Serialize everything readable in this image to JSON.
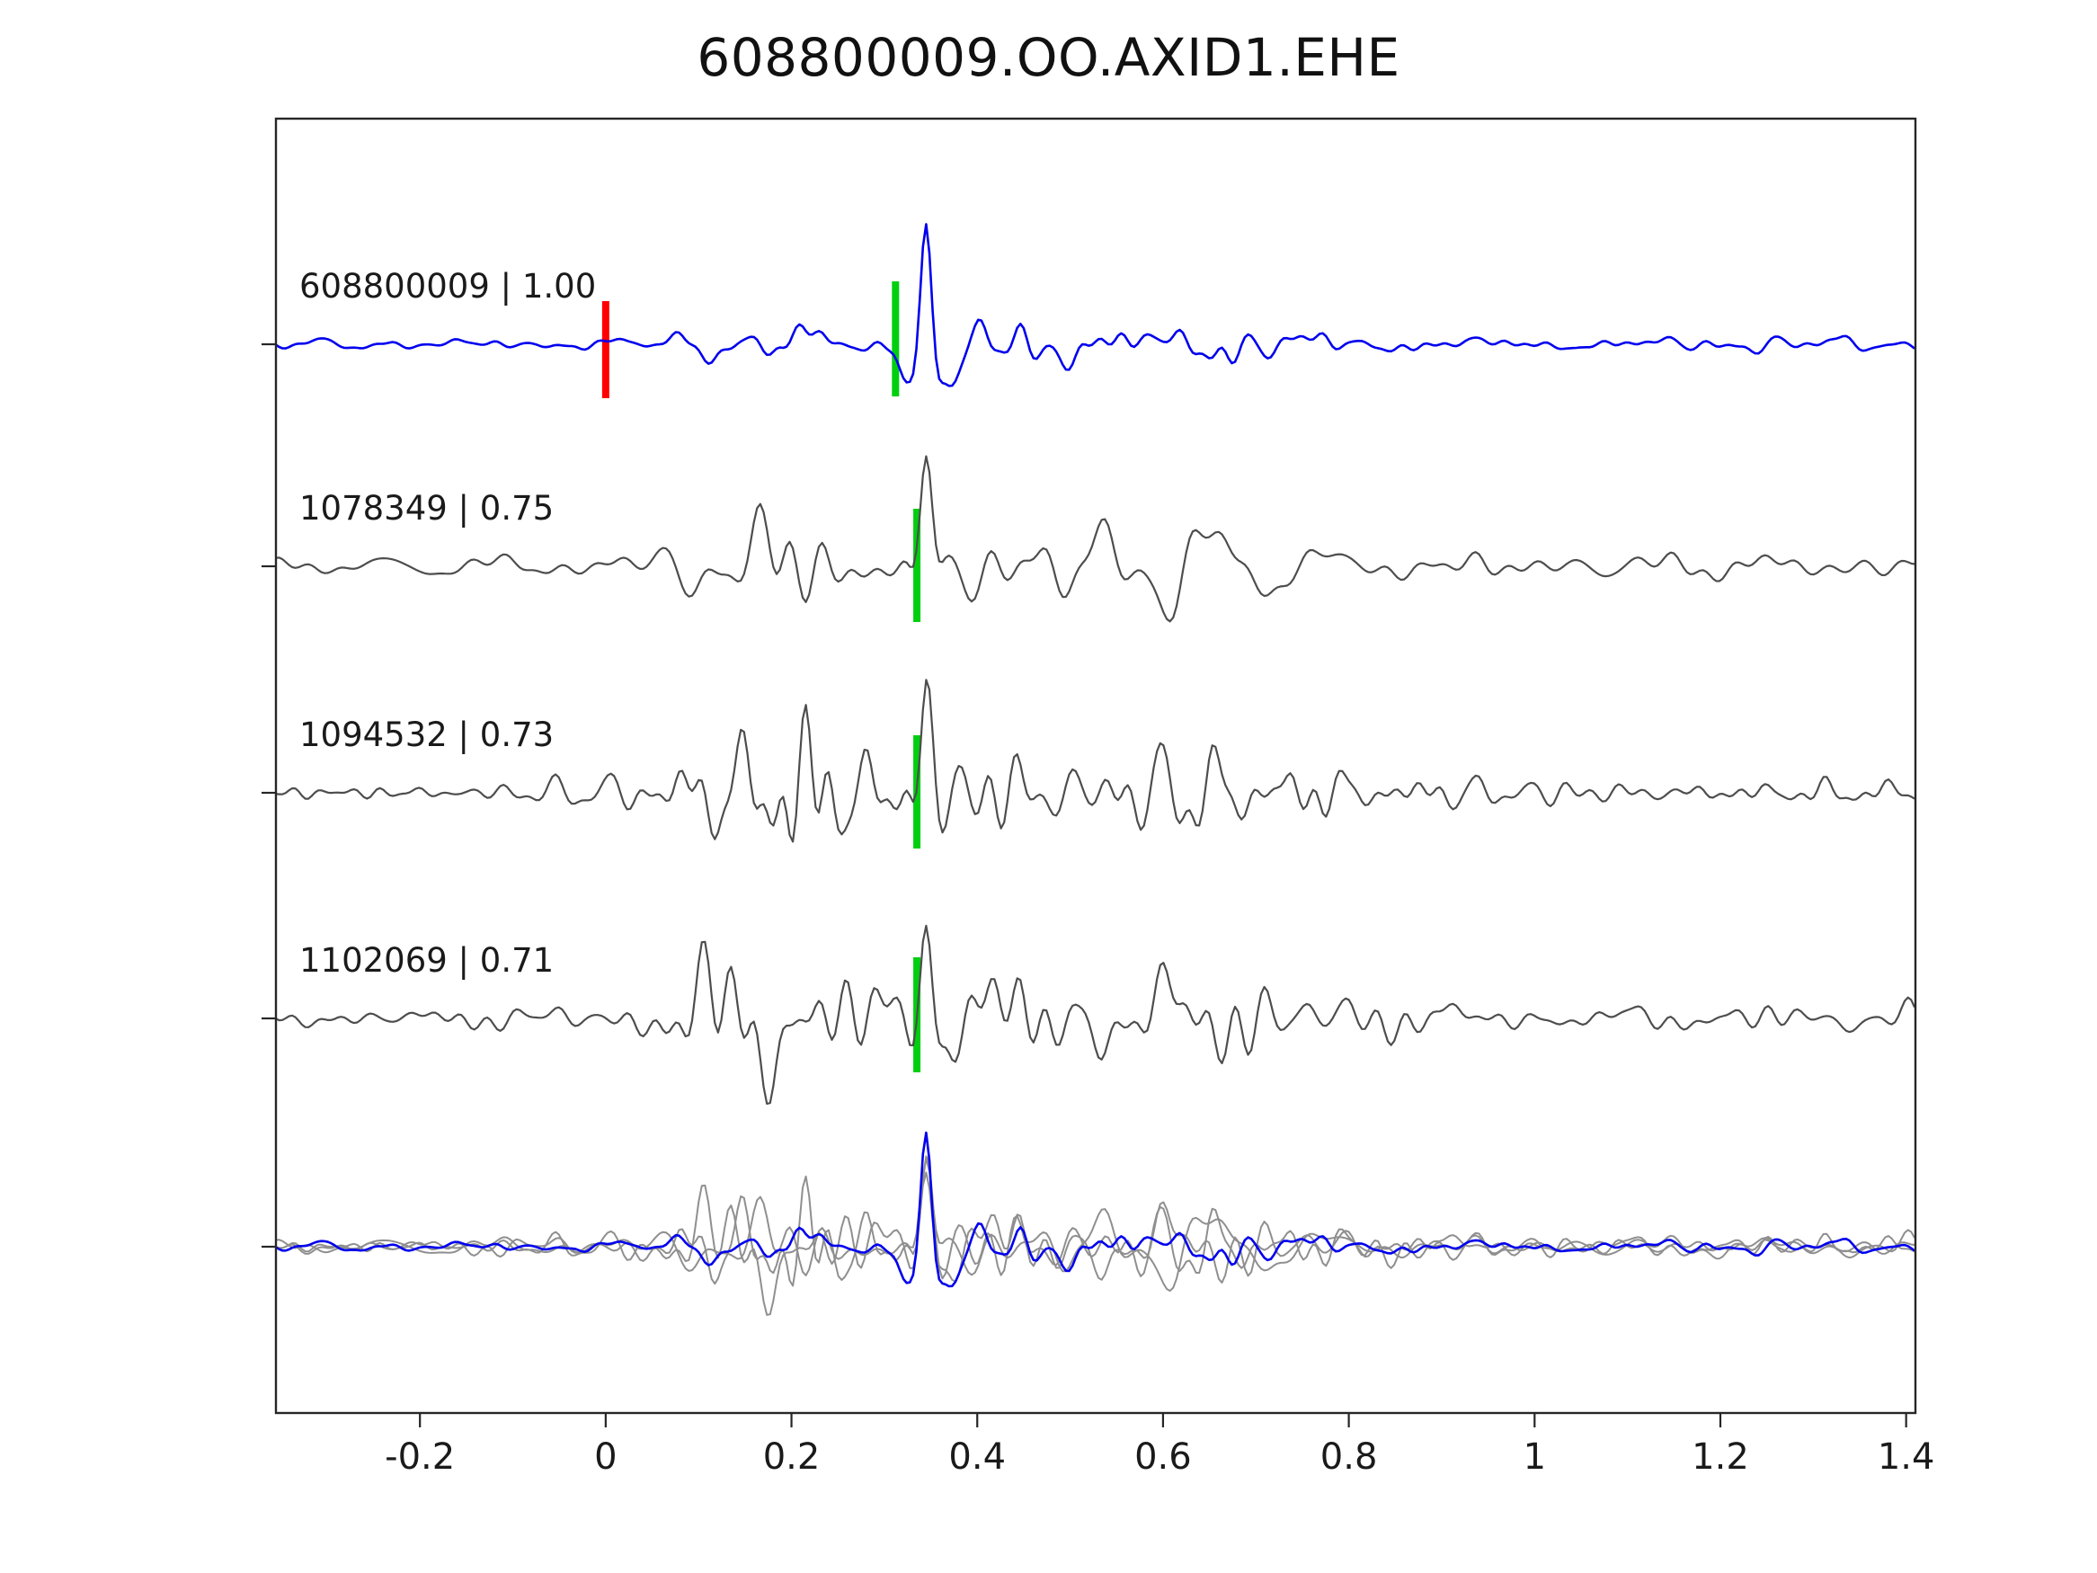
{
  "title": "608800009.OO.AXID1.EHE",
  "chart_data": {
    "type": "line",
    "title": "608800009.OO.AXID1.EHE",
    "xlabel": "",
    "ylabel": "",
    "xlim": [
      -0.355,
      1.41
    ],
    "xticks": [
      -0.2,
      0,
      0.2,
      0.4,
      0.6,
      0.8,
      1,
      1.2,
      1.4
    ],
    "xtick_labels": [
      "-0.2",
      "0",
      "0.2",
      "0.4",
      "0.6",
      "0.8",
      "1",
      "1.2",
      "1.4"
    ],
    "grid": false,
    "legend": "none",
    "background": "#ffffff",
    "colors": {
      "template": "#0000ee",
      "match": "#4d4d4d",
      "overlay_gray": "#8f8f8f",
      "pick_red": "#ff0000",
      "pick_green": "#00cf10",
      "axis": "#262626"
    },
    "rows": [
      {
        "label": "608800009 | 1.00",
        "correlation": 1.0,
        "event_id": "608800009",
        "color_key": "template",
        "seed": 7,
        "amp_env": [
          [
            -0.355,
            5
          ],
          [
            -0.08,
            5
          ],
          [
            0.0,
            7
          ],
          [
            0.06,
            12
          ],
          [
            0.1,
            16
          ],
          [
            0.14,
            20
          ],
          [
            0.18,
            24
          ],
          [
            0.22,
            26
          ],
          [
            0.26,
            16
          ],
          [
            0.3,
            12
          ],
          [
            0.36,
            14
          ],
          [
            0.41,
            30
          ],
          [
            0.47,
            32
          ],
          [
            0.53,
            26
          ],
          [
            0.6,
            20
          ],
          [
            0.66,
            30
          ],
          [
            0.72,
            20
          ],
          [
            0.78,
            14
          ],
          [
            0.85,
            12
          ],
          [
            0.95,
            9
          ],
          [
            1.05,
            8
          ],
          [
            1.2,
            8
          ],
          [
            1.41,
            8
          ]
        ],
        "wavelets": [
          {
            "x": 0.345,
            "amp": 138,
            "w": 0.012,
            "f": 24
          },
          {
            "x": 0.372,
            "amp": -60,
            "w": 0.018,
            "f": 12
          },
          {
            "x": 0.322,
            "amp": -35,
            "w": 0.012,
            "f": 15
          }
        ],
        "picks": [
          {
            "x": 0.0,
            "color_key": "pick_red",
            "up": 48,
            "down": 60
          },
          {
            "x": 0.312,
            "color_key": "pick_green",
            "up": 70,
            "down": 58
          }
        ]
      },
      {
        "label": "1078349 | 0.75",
        "correlation": 0.75,
        "event_id": "1078349",
        "color_key": "match",
        "seed": 13,
        "amp_env": [
          [
            -0.355,
            8
          ],
          [
            -0.12,
            9
          ],
          [
            -0.02,
            11
          ],
          [
            0.04,
            20
          ],
          [
            0.09,
            35
          ],
          [
            0.13,
            55
          ],
          [
            0.16,
            75
          ],
          [
            0.19,
            90
          ],
          [
            0.22,
            80
          ],
          [
            0.25,
            55
          ],
          [
            0.29,
            38
          ],
          [
            0.33,
            32
          ],
          [
            0.38,
            40
          ],
          [
            0.44,
            52
          ],
          [
            0.5,
            58
          ],
          [
            0.56,
            48
          ],
          [
            0.62,
            42
          ],
          [
            0.68,
            32
          ],
          [
            0.75,
            24
          ],
          [
            0.83,
            19
          ],
          [
            0.92,
            15
          ],
          [
            1.05,
            13
          ],
          [
            1.2,
            12
          ],
          [
            1.41,
            12
          ]
        ],
        "wavelets": [
          {
            "x": 0.345,
            "amp": 115,
            "w": 0.013,
            "f": 22
          }
        ],
        "picks": [
          {
            "x": 0.335,
            "color_key": "pick_green",
            "up": 64,
            "down": 62
          }
        ]
      },
      {
        "label": "1094532 | 0.73",
        "correlation": 0.73,
        "event_id": "1094532",
        "color_key": "match",
        "seed": 29,
        "amp_env": [
          [
            -0.355,
            8
          ],
          [
            -0.12,
            9
          ],
          [
            -0.02,
            12
          ],
          [
            0.04,
            22
          ],
          [
            0.09,
            38
          ],
          [
            0.13,
            58
          ],
          [
            0.17,
            72
          ],
          [
            0.2,
            88
          ],
          [
            0.23,
            78
          ],
          [
            0.26,
            52
          ],
          [
            0.3,
            36
          ],
          [
            0.34,
            30
          ],
          [
            0.4,
            44
          ],
          [
            0.46,
            56
          ],
          [
            0.52,
            55
          ],
          [
            0.58,
            45
          ],
          [
            0.64,
            38
          ],
          [
            0.7,
            30
          ],
          [
            0.78,
            22
          ],
          [
            0.86,
            17
          ],
          [
            0.95,
            14
          ],
          [
            1.1,
            12
          ],
          [
            1.25,
            12
          ],
          [
            1.41,
            12
          ]
        ],
        "wavelets": [
          {
            "x": 0.345,
            "amp": 112,
            "w": 0.013,
            "f": 22
          }
        ],
        "picks": [
          {
            "x": 0.335,
            "color_key": "pick_green",
            "up": 64,
            "down": 62
          }
        ]
      },
      {
        "label": "1102069 | 0.71",
        "correlation": 0.71,
        "event_id": "1102069",
        "color_key": "match",
        "seed": 47,
        "amp_env": [
          [
            -0.355,
            8
          ],
          [
            -0.12,
            9
          ],
          [
            -0.02,
            12
          ],
          [
            0.04,
            24
          ],
          [
            0.09,
            42
          ],
          [
            0.13,
            62
          ],
          [
            0.17,
            85
          ],
          [
            0.2,
            105
          ],
          [
            0.23,
            90
          ],
          [
            0.26,
            60
          ],
          [
            0.3,
            38
          ],
          [
            0.34,
            30
          ],
          [
            0.4,
            46
          ],
          [
            0.46,
            58
          ],
          [
            0.52,
            60
          ],
          [
            0.58,
            48
          ],
          [
            0.64,
            40
          ],
          [
            0.7,
            30
          ],
          [
            0.78,
            22
          ],
          [
            0.86,
            17
          ],
          [
            0.95,
            14
          ],
          [
            1.1,
            12
          ],
          [
            1.25,
            12
          ],
          [
            1.41,
            12
          ]
        ],
        "wavelets": [
          {
            "x": 0.345,
            "amp": 118,
            "w": 0.014,
            "f": 22
          }
        ],
        "picks": [
          {
            "x": 0.335,
            "color_key": "pick_green",
            "up": 68,
            "down": 60
          }
        ]
      }
    ],
    "overlay": {
      "description": "aligned superposition of matched traces with template",
      "components": [
        {
          "trace": 1,
          "scale": 0.8,
          "color_key": "overlay_gray"
        },
        {
          "trace": 2,
          "scale": 0.8,
          "color_key": "overlay_gray"
        },
        {
          "trace": 3,
          "scale": 0.8,
          "color_key": "overlay_gray"
        },
        {
          "trace": 0,
          "scale": 0.95,
          "color_key": "template"
        }
      ]
    }
  }
}
